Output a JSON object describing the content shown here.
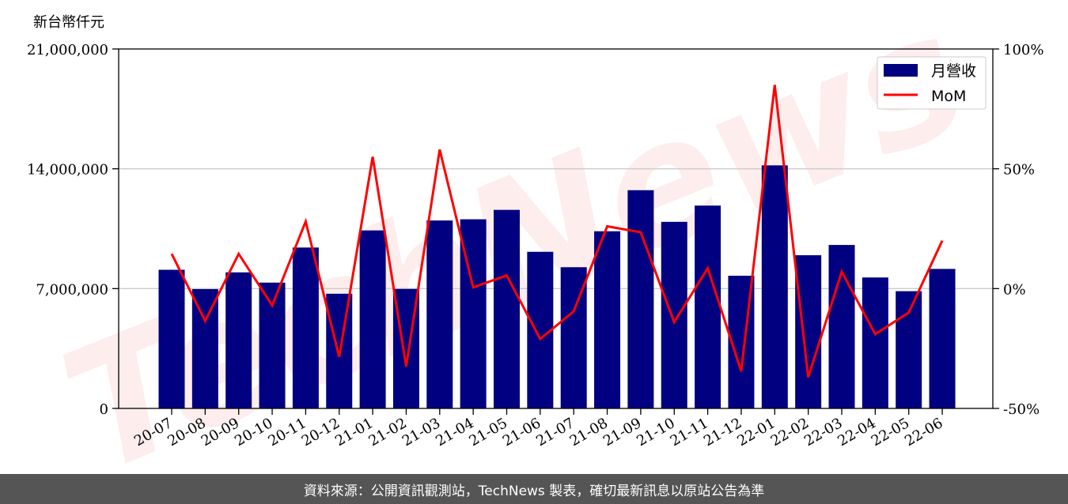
{
  "watermark": "TechNews",
  "chart_data": {
    "type": "bar",
    "unit_label": "新台幣仟元",
    "categories": [
      "20-07",
      "20-08",
      "20-09",
      "20-10",
      "20-11",
      "20-12",
      "21-01",
      "21-02",
      "21-03",
      "21-04",
      "21-05",
      "21-06",
      "21-07",
      "21-08",
      "21-09",
      "21-10",
      "21-11",
      "21-12",
      "22-01",
      "22-02",
      "22-03",
      "22-04",
      "22-05",
      "22-06"
    ],
    "series": [
      {
        "name": "月營收",
        "type": "bar",
        "axis": "left",
        "color": "#000080",
        "values": [
          8100000,
          6970000,
          7950000,
          7350000,
          9400000,
          6700000,
          10400000,
          6980000,
          10980000,
          11050000,
          11600000,
          9150000,
          8250000,
          10350000,
          12750000,
          10900000,
          11850000,
          7750000,
          14200000,
          8950000,
          9550000,
          7650000,
          6850000,
          8150000
        ]
      },
      {
        "name": "MoM",
        "type": "line",
        "axis": "right",
        "color": "#ff0000",
        "values": [
          14.5,
          -13.5,
          14.5,
          -7,
          28,
          -28.5,
          55,
          -32.5,
          58,
          0.5,
          5.5,
          -21,
          -9.5,
          26,
          23.5,
          -14,
          8.5,
          -34.5,
          85,
          -37,
          7,
          -19,
          -10,
          20
        ]
      }
    ],
    "y_left": {
      "ylim": [
        0,
        21000000
      ],
      "ticks": [
        "0",
        "7,000,000",
        "14,000,000",
        "21,000,000"
      ],
      "tick_values": [
        0,
        7000000,
        14000000,
        21000000
      ]
    },
    "y_right": {
      "ylim": [
        -50,
        100
      ],
      "ticks": [
        "-50%",
        "0%",
        "50%",
        "100%"
      ],
      "tick_values": [
        -50,
        0,
        50,
        100
      ]
    },
    "grid": "horizontal",
    "legend_position": "top-right"
  },
  "footer": {
    "source_text": "資料來源：公開資訊觀測站，TechNews 製表，確切最新訊息以原站公告為準"
  }
}
